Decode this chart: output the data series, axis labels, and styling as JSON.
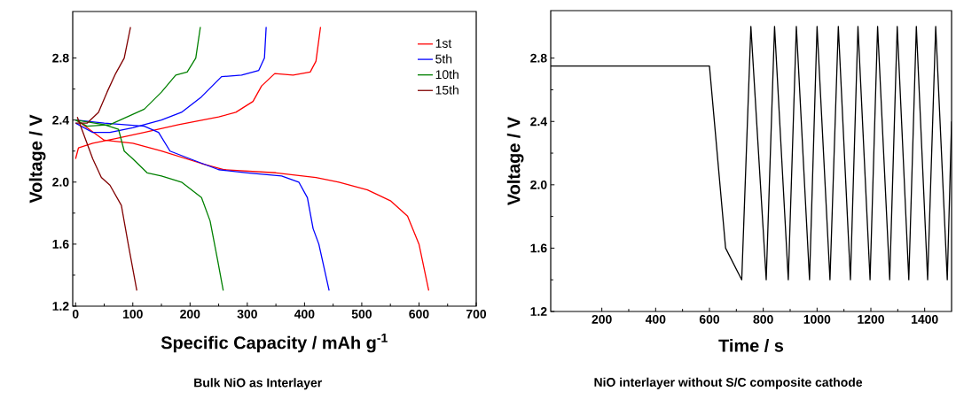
{
  "chart_data": [
    {
      "type": "line",
      "xlabel": "Specific Capacity / mAh g$^{-1}$",
      "ylabel": "Voltage / V",
      "annotations": [
        "Bulk NiO as Interlayer"
      ],
      "xlim": [
        -5,
        700
      ],
      "ylim": [
        1.2,
        3.1
      ],
      "xticks": [
        0,
        100,
        200,
        300,
        400,
        500,
        600,
        700
      ],
      "yticks": [
        1.2,
        1.6,
        {
          "value": 2,
          "label": "2.0"
        },
        2.4,
        2.8
      ],
      "legend": "top right",
      "series": [
        {
          "name": "1st",
          "color": "#ff0000",
          "x": [
            2,
            50,
            100,
            150,
            220,
            260,
            350,
            420,
            460,
            510,
            550,
            580,
            600,
            617,
            null,
            0,
            5,
            30,
            70,
            120,
            180,
            250,
            280,
            310,
            325,
            348,
            380,
            410,
            420,
            428
          ],
          "values": [
            2.4,
            2.27,
            2.25,
            2.2,
            2.12,
            2.08,
            2.06,
            2.03,
            2.0,
            1.95,
            1.88,
            1.78,
            1.6,
            1.3,
            null,
            2.15,
            2.22,
            2.25,
            2.28,
            2.32,
            2.37,
            2.42,
            2.45,
            2.52,
            2.62,
            2.7,
            2.69,
            2.71,
            2.78,
            3.0
          ]
        },
        {
          "name": "5th",
          "color": "#0000ff",
          "x": [
            0,
            50,
            120,
            145,
            165,
            200,
            250,
            300,
            360,
            390,
            405,
            415,
            425,
            443,
            null,
            0,
            30,
            60,
            100,
            150,
            185,
            220,
            255,
            290,
            320,
            330,
            333
          ],
          "values": [
            2.4,
            2.38,
            2.36,
            2.32,
            2.2,
            2.15,
            2.08,
            2.06,
            2.04,
            2.0,
            1.9,
            1.7,
            1.6,
            1.3,
            null,
            2.38,
            2.32,
            2.32,
            2.35,
            2.4,
            2.45,
            2.55,
            2.68,
            2.69,
            2.72,
            2.8,
            3.0
          ]
        },
        {
          "name": "10th",
          "color": "#008000",
          "x": [
            0,
            50,
            75,
            85,
            100,
            125,
            150,
            185,
            220,
            235,
            248,
            258,
            null,
            0,
            20,
            60,
            90,
            120,
            150,
            175,
            195,
            210,
            218
          ],
          "values": [
            2.4,
            2.37,
            2.34,
            2.2,
            2.15,
            2.06,
            2.04,
            2.0,
            1.9,
            1.75,
            1.5,
            1.3,
            null,
            2.4,
            2.36,
            2.37,
            2.42,
            2.47,
            2.58,
            2.69,
            2.71,
            2.8,
            3.0
          ]
        },
        {
          "name": "15th",
          "color": "#800000",
          "x": [
            3,
            15,
            30,
            45,
            60,
            80,
            92,
            107,
            null,
            0,
            20,
            40,
            55,
            70,
            85,
            96
          ],
          "values": [
            2.42,
            2.3,
            2.15,
            2.03,
            1.98,
            1.85,
            1.6,
            1.3,
            null,
            2.38,
            2.38,
            2.45,
            2.58,
            2.7,
            2.8,
            3.0
          ]
        }
      ]
    },
    {
      "type": "line",
      "xlabel": "Time / s",
      "ylabel": "Voltage / V",
      "annotations": [
        "NiO interlayer without S/C composite cathode"
      ],
      "xlim": [
        10,
        1500
      ],
      "ylim": [
        1.2,
        3.1
      ],
      "xticks": [
        200,
        400,
        600,
        800,
        1000,
        1200,
        1400
      ],
      "yticks": [
        1.2,
        1.6,
        {
          "value": 2,
          "label": "2.0"
        },
        2.4,
        2.8
      ],
      "series": [
        {
          "color": "#000000",
          "x": [
            10,
            600,
            660,
            720,
            754,
            811,
            842,
            893,
            923,
            972,
            1000,
            1048,
            1079,
            1124,
            1152,
            1197,
            1225,
            1270,
            1298,
            1341,
            1369,
            1411,
            1441,
            1484,
            1500
          ],
          "values": [
            2.75,
            2.75,
            1.6,
            1.4,
            3.0,
            1.4,
            3.0,
            1.4,
            3.0,
            1.4,
            3.0,
            1.4,
            3.0,
            1.4,
            3.0,
            1.4,
            3.0,
            1.4,
            3.0,
            1.4,
            3.0,
            1.4,
            3.0,
            1.4,
            2.4
          ]
        }
      ]
    }
  ]
}
